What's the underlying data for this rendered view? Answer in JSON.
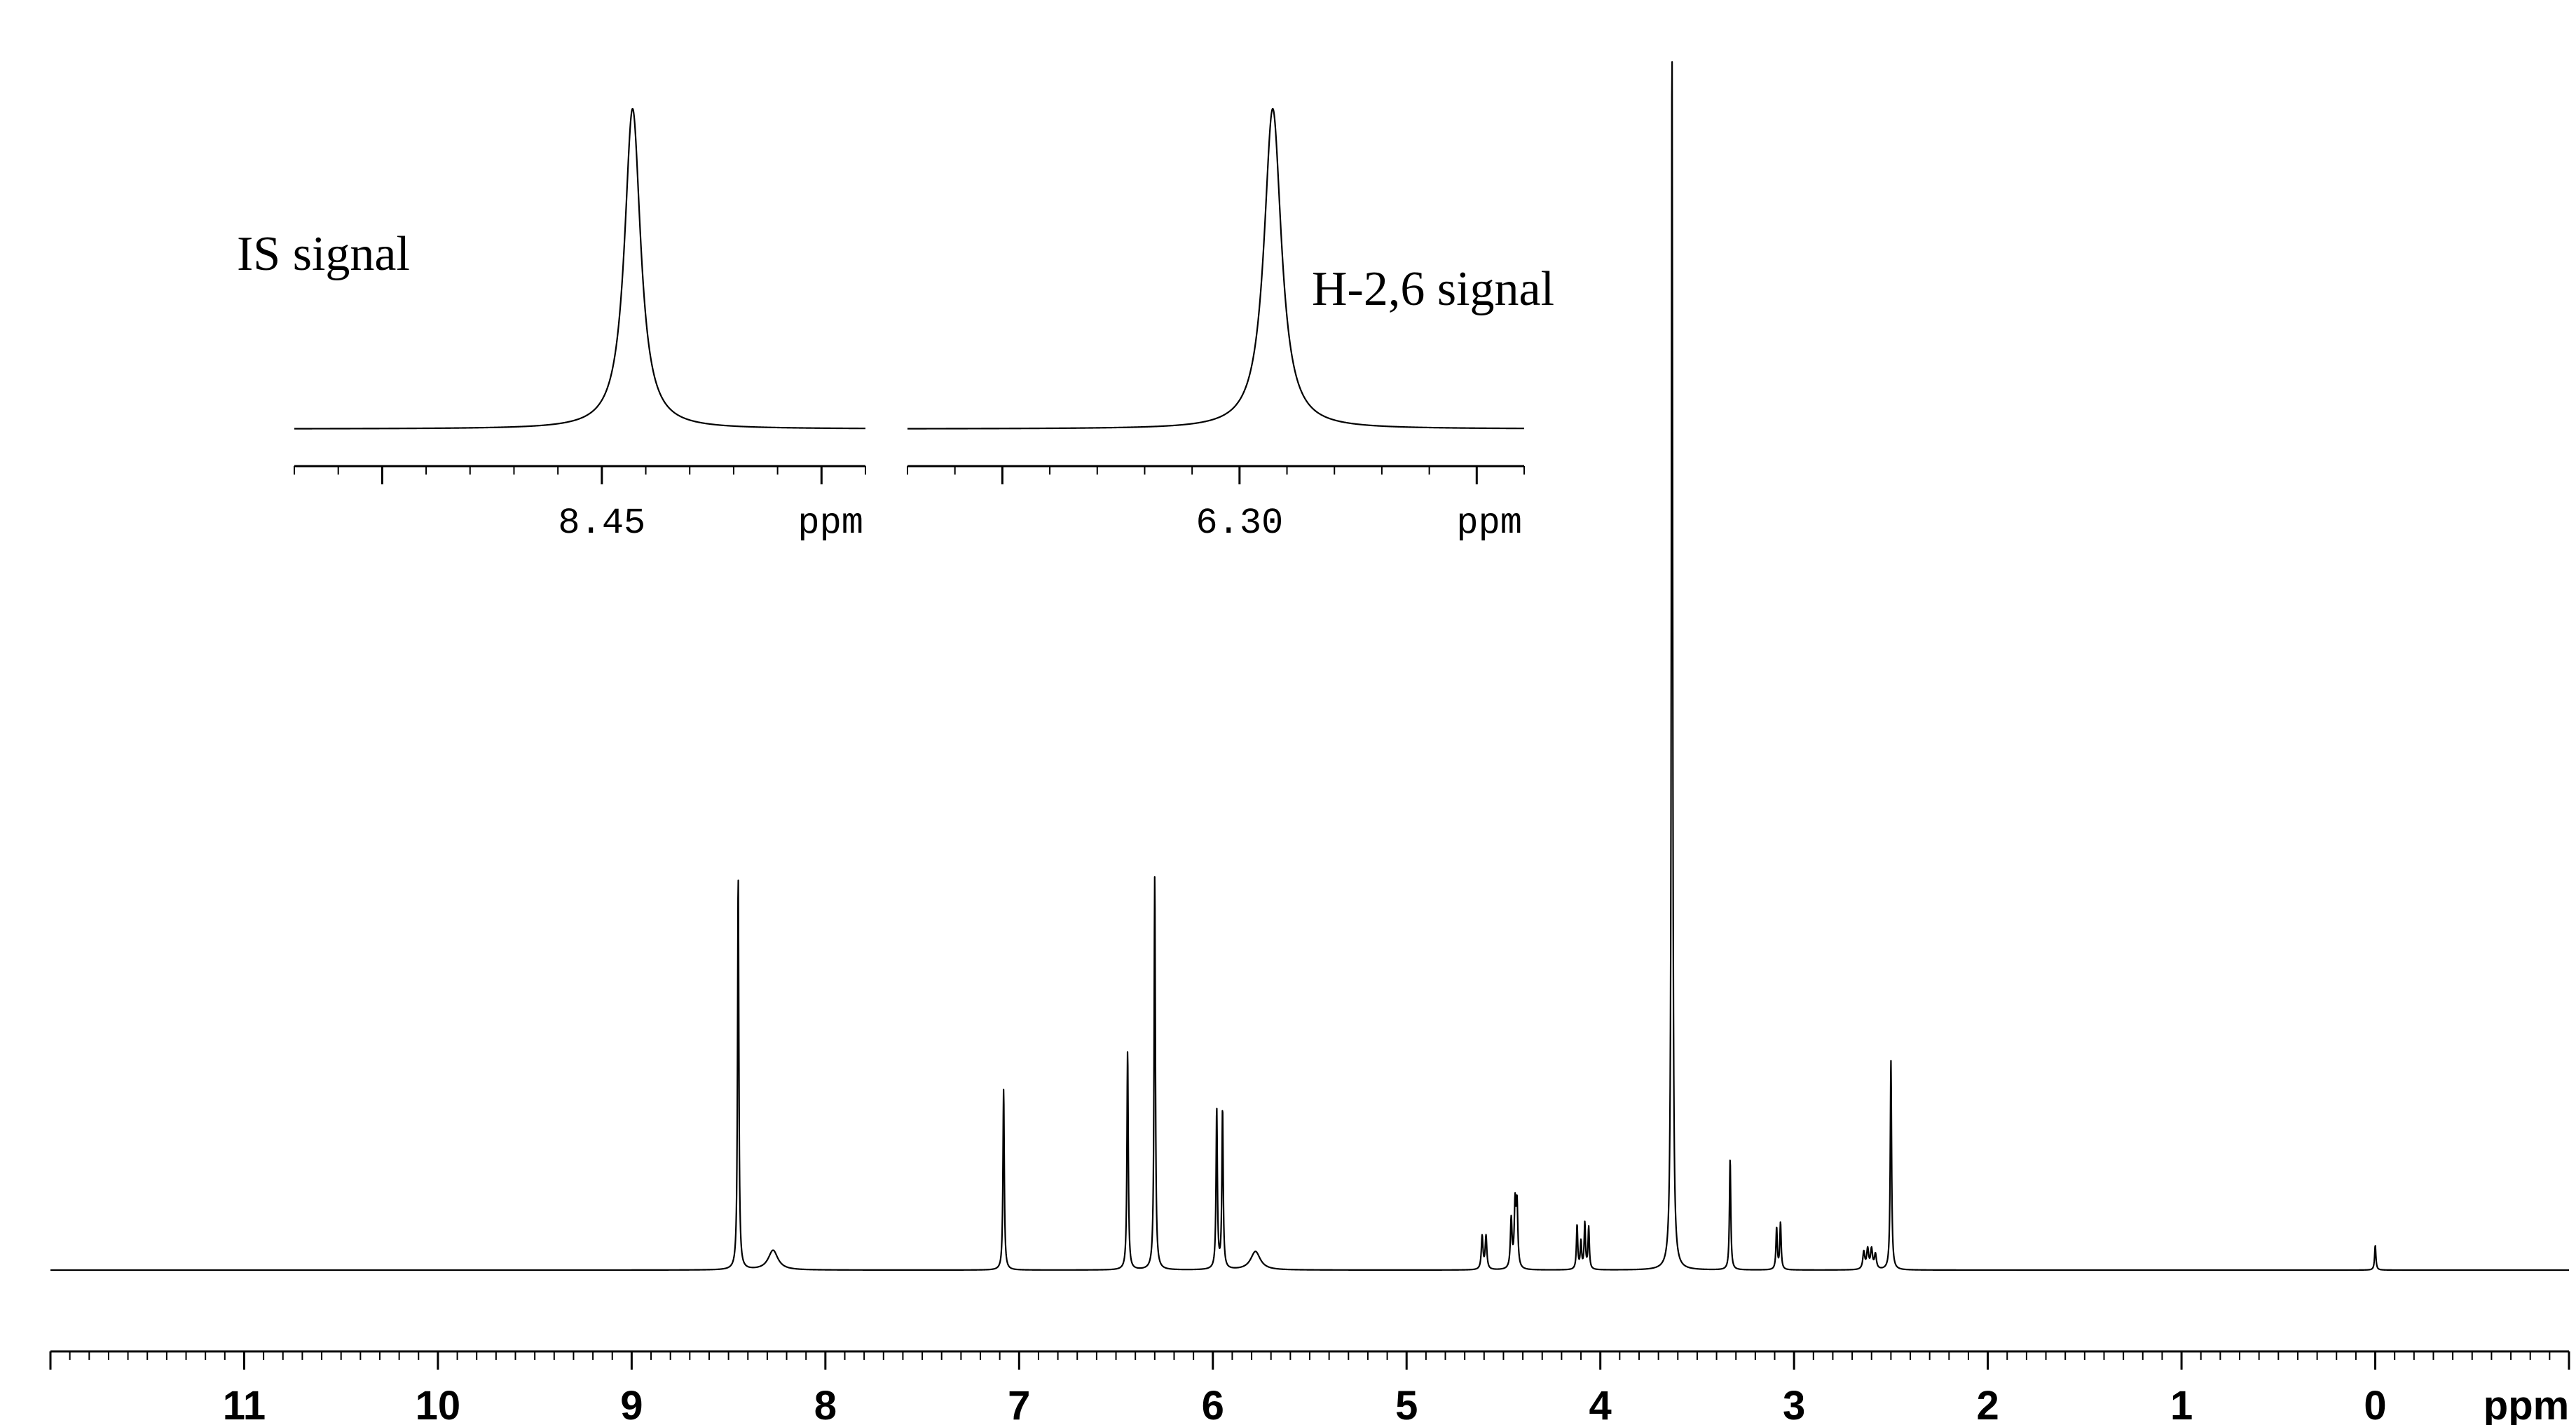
{
  "chart_data": {
    "type": "line",
    "xlabel": "ppm",
    "x_reversed": true,
    "xlim": [
      12.0,
      -1.0
    ],
    "xticks": [
      11,
      10,
      9,
      8,
      7,
      6,
      5,
      4,
      3,
      2,
      1,
      0
    ],
    "peaks": [
      {
        "ppm": 8.45,
        "height": 0.32,
        "width": 0.004
      },
      {
        "ppm": 8.27,
        "height": 0.016,
        "width": 0.03
      },
      {
        "ppm": 7.08,
        "height": 0.147,
        "width": 0.004
      },
      {
        "ppm": 6.44,
        "height": 0.178,
        "width": 0.004
      },
      {
        "ppm": 6.3,
        "height": 0.32,
        "width": 0.004
      },
      {
        "ppm": 5.98,
        "height": 0.13,
        "width": 0.004
      },
      {
        "ppm": 5.95,
        "height": 0.13,
        "width": 0.004
      },
      {
        "ppm": 5.78,
        "height": 0.015,
        "width": 0.03
      },
      {
        "ppm": 4.61,
        "height": 0.027,
        "width": 0.005
      },
      {
        "ppm": 4.59,
        "height": 0.027,
        "width": 0.005
      },
      {
        "ppm": 4.46,
        "height": 0.04,
        "width": 0.005
      },
      {
        "ppm": 4.44,
        "height": 0.05,
        "width": 0.005
      },
      {
        "ppm": 4.43,
        "height": 0.05,
        "width": 0.005
      },
      {
        "ppm": 4.12,
        "height": 0.036,
        "width": 0.004
      },
      {
        "ppm": 4.1,
        "height": 0.022,
        "width": 0.004
      },
      {
        "ppm": 4.08,
        "height": 0.037,
        "width": 0.004
      },
      {
        "ppm": 4.06,
        "height": 0.034,
        "width": 0.004
      },
      {
        "ppm": 3.63,
        "height": 1.0,
        "width": 0.004
      },
      {
        "ppm": 3.33,
        "height": 0.09,
        "width": 0.004
      },
      {
        "ppm": 3.09,
        "height": 0.034,
        "width": 0.004
      },
      {
        "ppm": 3.07,
        "height": 0.038,
        "width": 0.004
      },
      {
        "ppm": 2.64,
        "height": 0.014,
        "width": 0.006
      },
      {
        "ppm": 2.62,
        "height": 0.016,
        "width": 0.006
      },
      {
        "ppm": 2.6,
        "height": 0.016,
        "width": 0.006
      },
      {
        "ppm": 2.58,
        "height": 0.012,
        "width": 0.006
      },
      {
        "ppm": 2.5,
        "height": 0.17,
        "width": 0.004
      },
      {
        "ppm": 0.0,
        "height": 0.02,
        "width": 0.004
      }
    ],
    "insets": [
      {
        "annotation": "IS signal",
        "xlabel": "ppm",
        "xlim": [
          8.52,
          8.39
        ],
        "xticks": [
          8.45
        ],
        "peak": {
          "ppm": 8.443,
          "height": 1.0,
          "width": 0.0022
        }
      },
      {
        "annotation": "H-2,6 signal",
        "xlabel": "ppm",
        "xlim": [
          6.37,
          6.24
        ],
        "xticks": [
          6.3
        ],
        "peak": {
          "ppm": 6.293,
          "height": 1.0,
          "width": 0.0022
        }
      }
    ]
  }
}
